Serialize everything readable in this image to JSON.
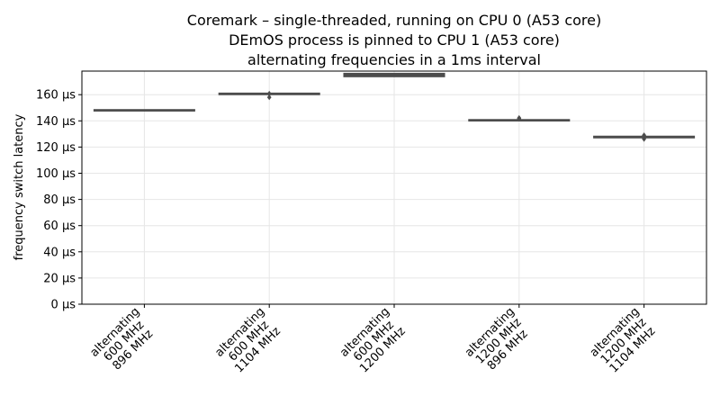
{
  "chart_data": {
    "type": "box",
    "title_lines": [
      "Coremark – single-threaded, running on CPU 0 (A53 core)",
      "DEmOS process is pinned to CPU 1 (A53 core)",
      "alternating frequencies in a 1ms interval"
    ],
    "xlabel": "",
    "ylabel": "frequency switch latency",
    "y_unit": "µs",
    "ylim": [
      0,
      178
    ],
    "yticks": [
      0,
      20,
      40,
      60,
      80,
      100,
      120,
      140,
      160
    ],
    "ytick_labels": [
      "0 µs",
      "20 µs",
      "40 µs",
      "60 µs",
      "80 µs",
      "100 µs",
      "120 µs",
      "140 µs",
      "160 µs"
    ],
    "grid": true,
    "categories": [
      [
        "alternating",
        "600 MHz",
        "896 MHz"
      ],
      [
        "alternating",
        "600 MHz",
        "1104 MHz"
      ],
      [
        "alternating",
        "600 MHz",
        "1200 MHz"
      ],
      [
        "alternating",
        "1200 MHz",
        "896 MHz"
      ],
      [
        "alternating",
        "1200 MHz",
        "1104 MHz"
      ]
    ],
    "boxes": [
      {
        "q1": 147.8,
        "median": 148.0,
        "q3": 148.3,
        "outliers": []
      },
      {
        "q1": 160.3,
        "median": 160.6,
        "q3": 160.9,
        "outliers": [
          158.0,
          160.8
        ]
      },
      {
        "q1": 174.0,
        "median": 175.1,
        "q3": 176.0,
        "outliers": []
      },
      {
        "q1": 140.2,
        "median": 140.4,
        "q3": 140.7,
        "outliers": [
          142.2,
          141.6
        ]
      },
      {
        "q1": 127.3,
        "median": 127.7,
        "q3": 128.0,
        "outliers": [
          126.2,
          129.0
        ]
      }
    ],
    "colors": {
      "box": "#4c4c4c",
      "grid": "#e6e6e6"
    }
  }
}
